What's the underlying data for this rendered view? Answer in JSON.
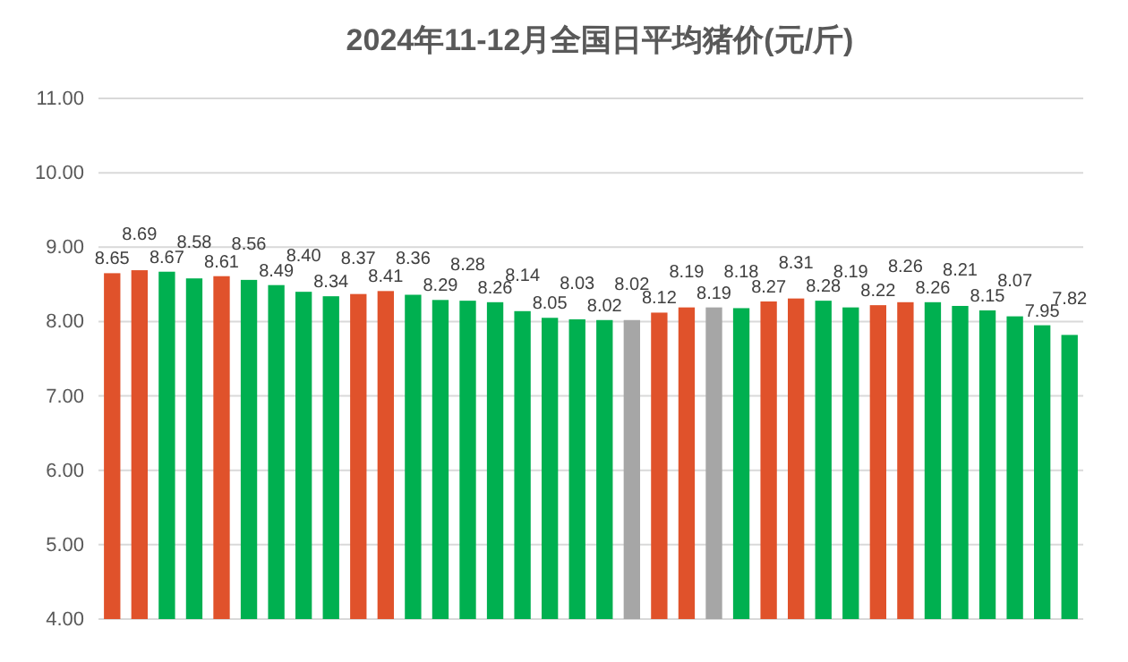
{
  "chart_data": {
    "type": "bar",
    "title": "2024年11-12月全国日平均猪价(元/斤)",
    "categories": [
      null,
      null,
      null,
      null,
      null,
      null,
      null,
      null,
      null,
      null,
      null,
      null,
      null,
      null,
      null,
      null,
      null,
      null,
      null,
      null,
      null,
      null,
      null,
      null,
      null,
      null,
      null,
      null,
      null,
      null,
      null,
      null,
      null,
      null,
      null,
      null
    ],
    "values": [
      8.65,
      8.69,
      8.67,
      8.58,
      8.61,
      8.56,
      8.49,
      8.4,
      8.34,
      8.37,
      8.41,
      8.36,
      8.29,
      8.28,
      8.26,
      8.14,
      8.05,
      8.03,
      8.02,
      8.02,
      8.12,
      8.19,
      8.19,
      8.18,
      8.27,
      8.31,
      8.28,
      8.19,
      8.22,
      8.26,
      8.26,
      8.21,
      8.15,
      8.07,
      7.95,
      7.82
    ],
    "value_labels": [
      "8.65",
      "8.69",
      "8.67",
      "8.58",
      "8.61",
      "8.56",
      "8.49",
      "8.40",
      "8.34",
      "8.37",
      "8.41",
      "8.36",
      "8.29",
      "8.28",
      "8.26",
      "8.14",
      "8.05",
      "8.03",
      "8.02",
      "8.02",
      "8.12",
      "8.19",
      "8.19",
      "8.18",
      "8.27",
      "8.31",
      "8.28",
      "8.19",
      "8.22",
      "8.26",
      "8.26",
      "8.21",
      "8.15",
      "8.07",
      "7.95",
      "7.82"
    ],
    "colors": [
      "#e0522b",
      "#e0522b",
      "#00b050",
      "#00b050",
      "#e0522b",
      "#00b050",
      "#00b050",
      "#00b050",
      "#00b050",
      "#e0522b",
      "#e0522b",
      "#00b050",
      "#00b050",
      "#00b050",
      "#00b050",
      "#00b050",
      "#00b050",
      "#00b050",
      "#00b050",
      "#a6a6a6",
      "#e0522b",
      "#e0522b",
      "#a6a6a6",
      "#00b050",
      "#e0522b",
      "#e0522b",
      "#00b050",
      "#00b050",
      "#e0522b",
      "#e0522b",
      "#00b050",
      "#00b050",
      "#00b050",
      "#00b050",
      "#00b050",
      "#00b050"
    ],
    "ylim": [
      4,
      11
    ],
    "yticks": [
      {
        "value": 4,
        "label": "4.00"
      },
      {
        "value": 5,
        "label": "5.00"
      },
      {
        "value": 6,
        "label": "6.00"
      },
      {
        "value": 7,
        "label": "7.00"
      },
      {
        "value": 8,
        "label": "8.00"
      },
      {
        "value": 9,
        "label": "9.00"
      },
      {
        "value": 10,
        "label": "10.00"
      },
      {
        "value": 11,
        "label": "11.00"
      }
    ],
    "grid": "y"
  }
}
